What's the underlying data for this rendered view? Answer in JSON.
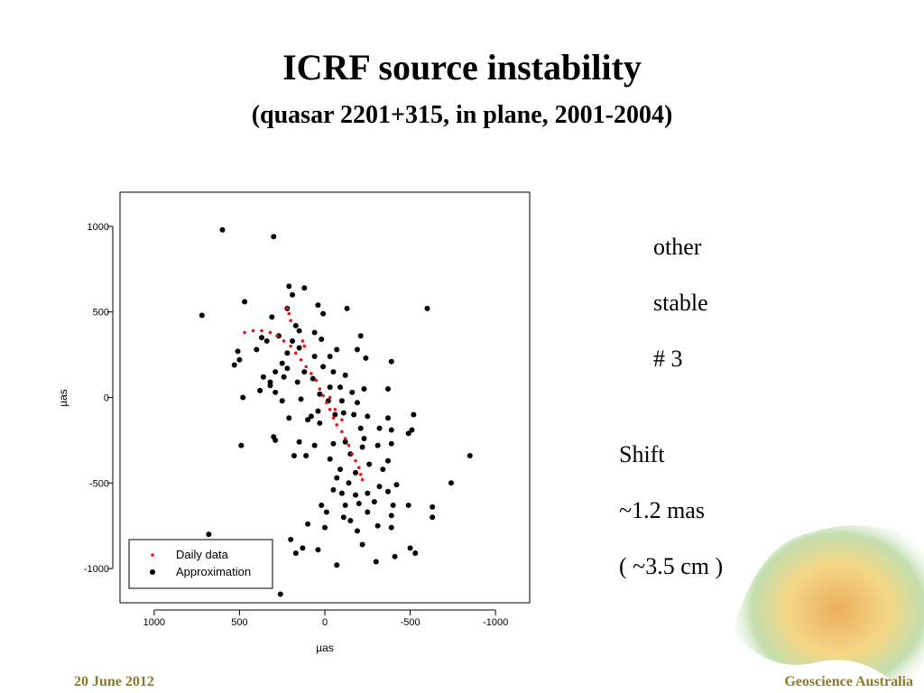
{
  "chart_data": {
    "type": "scatter",
    "title": "ICRF source instability",
    "subtitle": "(quasar 2201+315, in plane, 2001-2004)",
    "x_label": "µas",
    "y_label": "µas",
    "xlim": [
      1200,
      -1200
    ],
    "ylim": [
      -1200,
      1200
    ],
    "xticks": [
      1000,
      500,
      0,
      -500,
      -1000
    ],
    "yticks": [
      1000,
      500,
      0,
      -500,
      -1000
    ],
    "legend": "bottom-left",
    "series": [
      {
        "name": "Daily data",
        "color": "#e8141b",
        "x": [
          220,
          210,
          200,
          470,
          420,
          370,
          320,
          280,
          240,
          200,
          170,
          140,
          110,
          80,
          50,
          30,
          10,
          -10,
          -30,
          -50,
          -70,
          -100,
          -120,
          -140,
          -160,
          -180,
          -200,
          -210,
          -220,
          130,
          120,
          -30,
          -60,
          -100
        ],
        "y": [
          520,
          490,
          450,
          380,
          390,
          390,
          380,
          360,
          330,
          300,
          260,
          220,
          180,
          140,
          100,
          50,
          10,
          -30,
          -70,
          -120,
          -160,
          -200,
          -240,
          -280,
          -330,
          -370,
          -410,
          -450,
          -480,
          330,
          300,
          0,
          -70,
          -130
        ]
      },
      {
        "name": "Approximation",
        "color": "#000000",
        "x": [
          600,
          300,
          210,
          120,
          190,
          470,
          720,
          310,
          40,
          10,
          -130,
          -600,
          220,
          170,
          150,
          270,
          370,
          340,
          60,
          20,
          190,
          -210,
          510,
          400,
          220,
          150,
          -70,
          -30,
          -190,
          530,
          500,
          250,
          220,
          60,
          -240,
          -390,
          290,
          360,
          320,
          240,
          120,
          10,
          -50,
          -120,
          380,
          320,
          290,
          160,
          70,
          -30,
          -90,
          -160,
          -230,
          -370,
          480,
          250,
          140,
          30,
          -20,
          -100,
          -190,
          40,
          100,
          -60,
          -110,
          -170,
          -250,
          -370,
          -520,
          210,
          80,
          30,
          -210,
          -320,
          -390,
          -510,
          300,
          290,
          490,
          150,
          60,
          -50,
          -120,
          -230,
          -310,
          -390,
          -490,
          -850,
          180,
          110,
          -30,
          -150,
          -220,
          -370,
          -90,
          -180,
          -260,
          -340,
          -70,
          -140,
          -320,
          -370,
          -420,
          -740,
          -50,
          -100,
          -180,
          -250,
          20,
          -10,
          -120,
          -200,
          -290,
          -400,
          -490,
          -390,
          -630,
          -630,
          100,
          0,
          -110,
          -150,
          -250,
          -310,
          -190,
          130,
          -390,
          200,
          -220,
          40,
          170,
          -500,
          -530,
          -410,
          -70,
          -300,
          680,
          260
        ],
        "y": [
          980,
          940,
          650,
          640,
          600,
          560,
          480,
          470,
          540,
          490,
          520,
          520,
          520,
          420,
          390,
          360,
          350,
          330,
          380,
          340,
          330,
          360,
          270,
          280,
          260,
          290,
          280,
          240,
          280,
          190,
          220,
          200,
          170,
          240,
          230,
          210,
          150,
          120,
          90,
          120,
          150,
          180,
          150,
          130,
          40,
          70,
          30,
          90,
          110,
          60,
          60,
          30,
          50,
          50,
          0,
          -20,
          -10,
          20,
          -20,
          -20,
          -30,
          -80,
          -130,
          -100,
          -90,
          -100,
          -110,
          -120,
          -100,
          -120,
          -110,
          -150,
          -180,
          -180,
          -190,
          -190,
          -230,
          -250,
          -280,
          -260,
          -280,
          -270,
          -260,
          -240,
          -280,
          -270,
          -210,
          -340,
          -340,
          -340,
          -360,
          -330,
          -290,
          -370,
          -420,
          -440,
          -390,
          -420,
          -470,
          -500,
          -520,
          -550,
          -510,
          -500,
          -540,
          -560,
          -570,
          -560,
          -630,
          -670,
          -630,
          -620,
          -610,
          -630,
          -630,
          -690,
          -640,
          -700,
          -740,
          -760,
          -700,
          -720,
          -670,
          -750,
          -780,
          -880,
          -760,
          -830,
          -860,
          -890,
          -910,
          -880,
          -910,
          -930,
          -980,
          -960,
          -800,
          -1150
        ]
      }
    ]
  },
  "notes": [
    "other",
    "stable",
    "# 3"
  ],
  "shift_notes": [
    "Shift",
    "~1.2 mas",
    "( ~3.5 cm )"
  ],
  "footer": {
    "date": "20 June 2012",
    "organization": "Geoscience Australia"
  }
}
